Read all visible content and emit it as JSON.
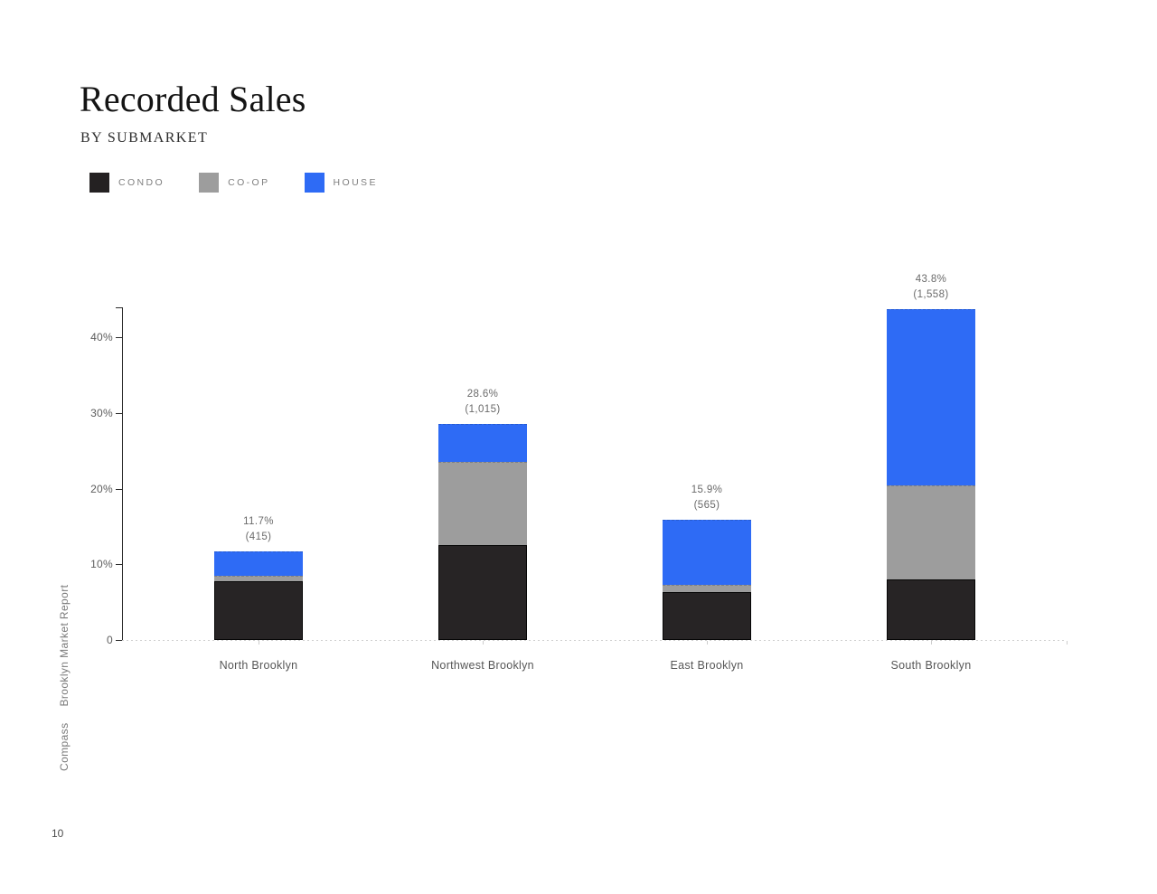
{
  "header": {
    "title": "Recorded Sales",
    "subtitle": "BY SUBMARKET"
  },
  "legend": [
    {
      "label": "CONDO",
      "color": "#242122"
    },
    {
      "label": "CO-OP",
      "color": "#9d9d9d"
    },
    {
      "label": "HOUSE",
      "color": "#2e6bf5"
    }
  ],
  "sidebar": {
    "brand": "Compass",
    "report": "Brooklyn Market Report"
  },
  "page": {
    "number": "10"
  },
  "chart_data": {
    "type": "bar",
    "stacked": true,
    "title": "Recorded Sales",
    "subtitle": "BY SUBMARKET",
    "categories": [
      "North Brooklyn",
      "Northwest Brooklyn",
      "East Brooklyn",
      "South Brooklyn"
    ],
    "series": [
      {
        "name": "CONDO",
        "color": "#272425",
        "values": [
          7.8,
          12.6,
          6.3,
          8.0
        ]
      },
      {
        "name": "CO-OP",
        "color": "#9d9d9d",
        "values": [
          0.7,
          10.9,
          1.0,
          12.4
        ]
      },
      {
        "name": "HOUSE",
        "color": "#2e6bf5",
        "values": [
          3.2,
          5.1,
          8.6,
          23.4
        ]
      }
    ],
    "totals": [
      {
        "pct": "11.7%",
        "count": "(415)"
      },
      {
        "pct": "28.6%",
        "count": "(1,015)"
      },
      {
        "pct": "15.9%",
        "count": "(565)"
      },
      {
        "pct": "43.8%",
        "count": "(1,558)"
      }
    ],
    "y_ticks": [
      {
        "label": "40%",
        "value": 40
      },
      {
        "label": "30%",
        "value": 30
      },
      {
        "label": "20%",
        "value": 20
      },
      {
        "label": "10%",
        "value": 10
      },
      {
        "label": "0",
        "value": 0
      }
    ],
    "ylim": [
      0,
      44
    ],
    "ylabel": "",
    "xlabel": "",
    "grid": false,
    "legend_position": "top-left"
  }
}
